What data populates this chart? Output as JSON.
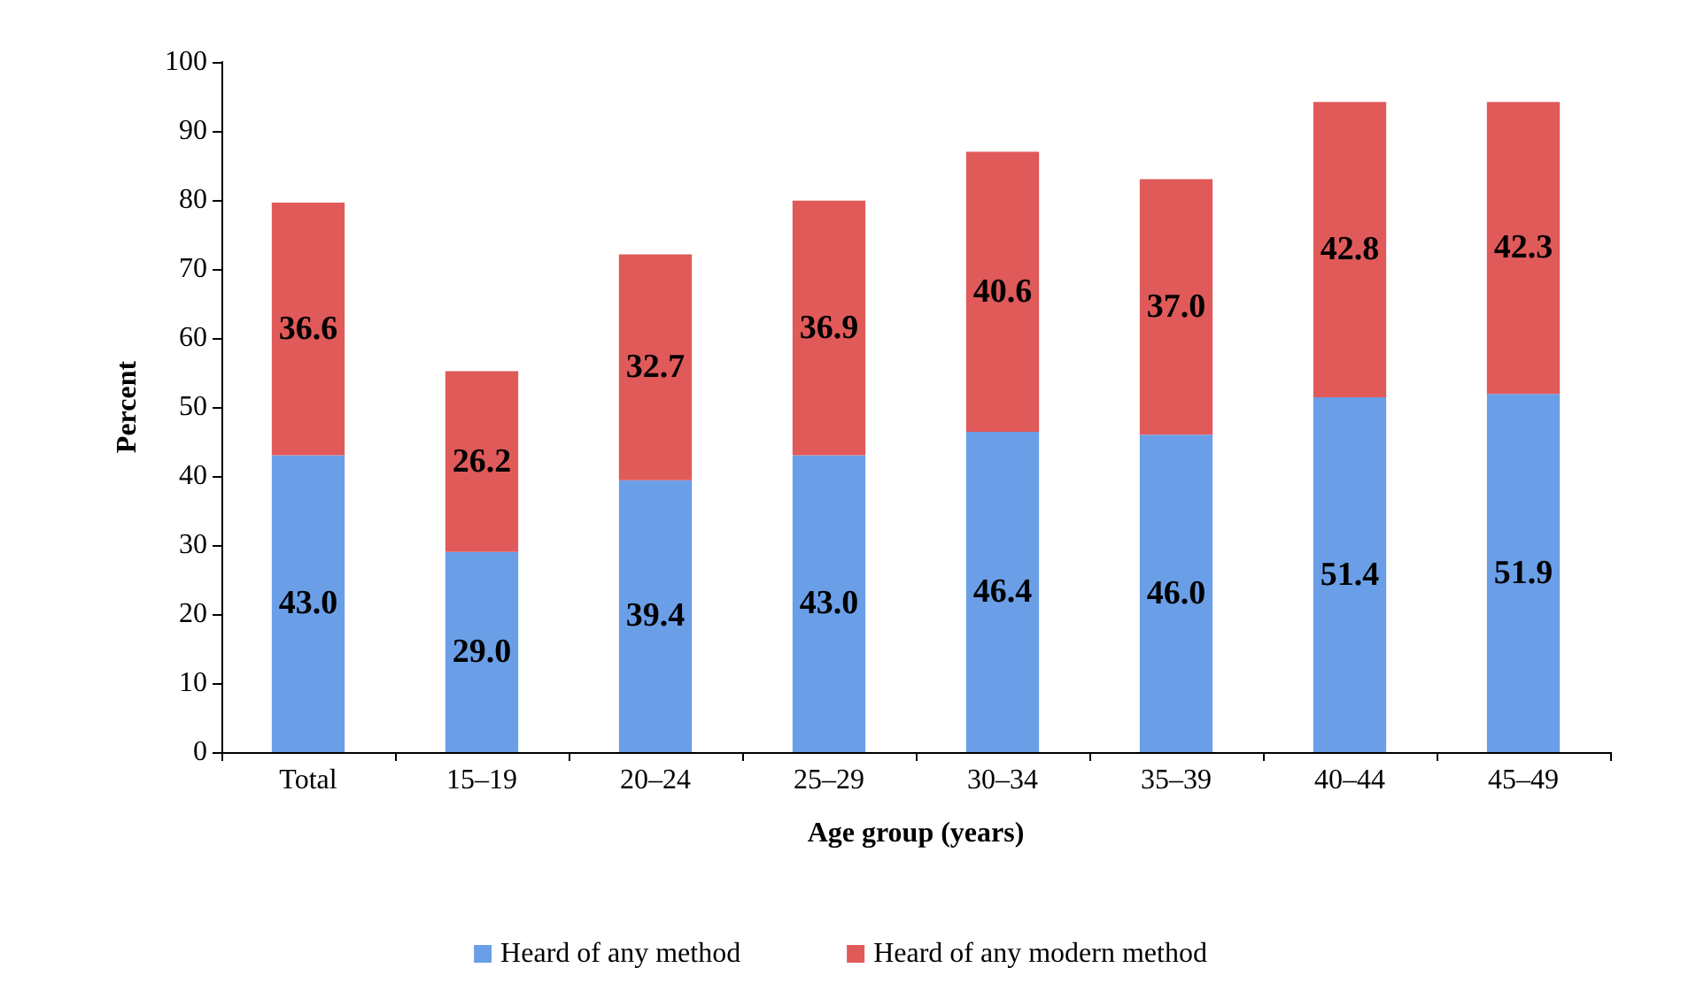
{
  "chart_data": {
    "type": "bar",
    "stacked": true,
    "xlabel": "Age group (years)",
    "ylabel": "Percent",
    "categories": [
      "Total",
      "15–19",
      "20–24",
      "25–29",
      "30–34",
      "35–39",
      "40–44",
      "45–49"
    ],
    "series": [
      {
        "name": "Heard of any method",
        "color": "#6a9fe8",
        "values": [
          43.0,
          29.0,
          39.4,
          43.0,
          46.4,
          46.0,
          51.4,
          51.9
        ],
        "value_labels": [
          "43.0",
          "29.0",
          "39.4",
          "43.0",
          "46.4",
          "46.0",
          "51.4",
          "51.9"
        ]
      },
      {
        "name": "Heard of any modern method",
        "color": "#e05a5a",
        "values": [
          36.6,
          26.2,
          32.7,
          36.9,
          40.6,
          37.0,
          42.8,
          42.3
        ],
        "value_labels": [
          "36.6",
          "26.2",
          "32.7",
          "36.9",
          "40.6",
          "37.0",
          "42.8",
          "42.3"
        ]
      }
    ],
    "ylim": [
      0,
      100
    ],
    "yticks": [
      0,
      10,
      20,
      30,
      40,
      50,
      60,
      70,
      80,
      90,
      100
    ],
    "legend": "bottom",
    "grid": false
  }
}
